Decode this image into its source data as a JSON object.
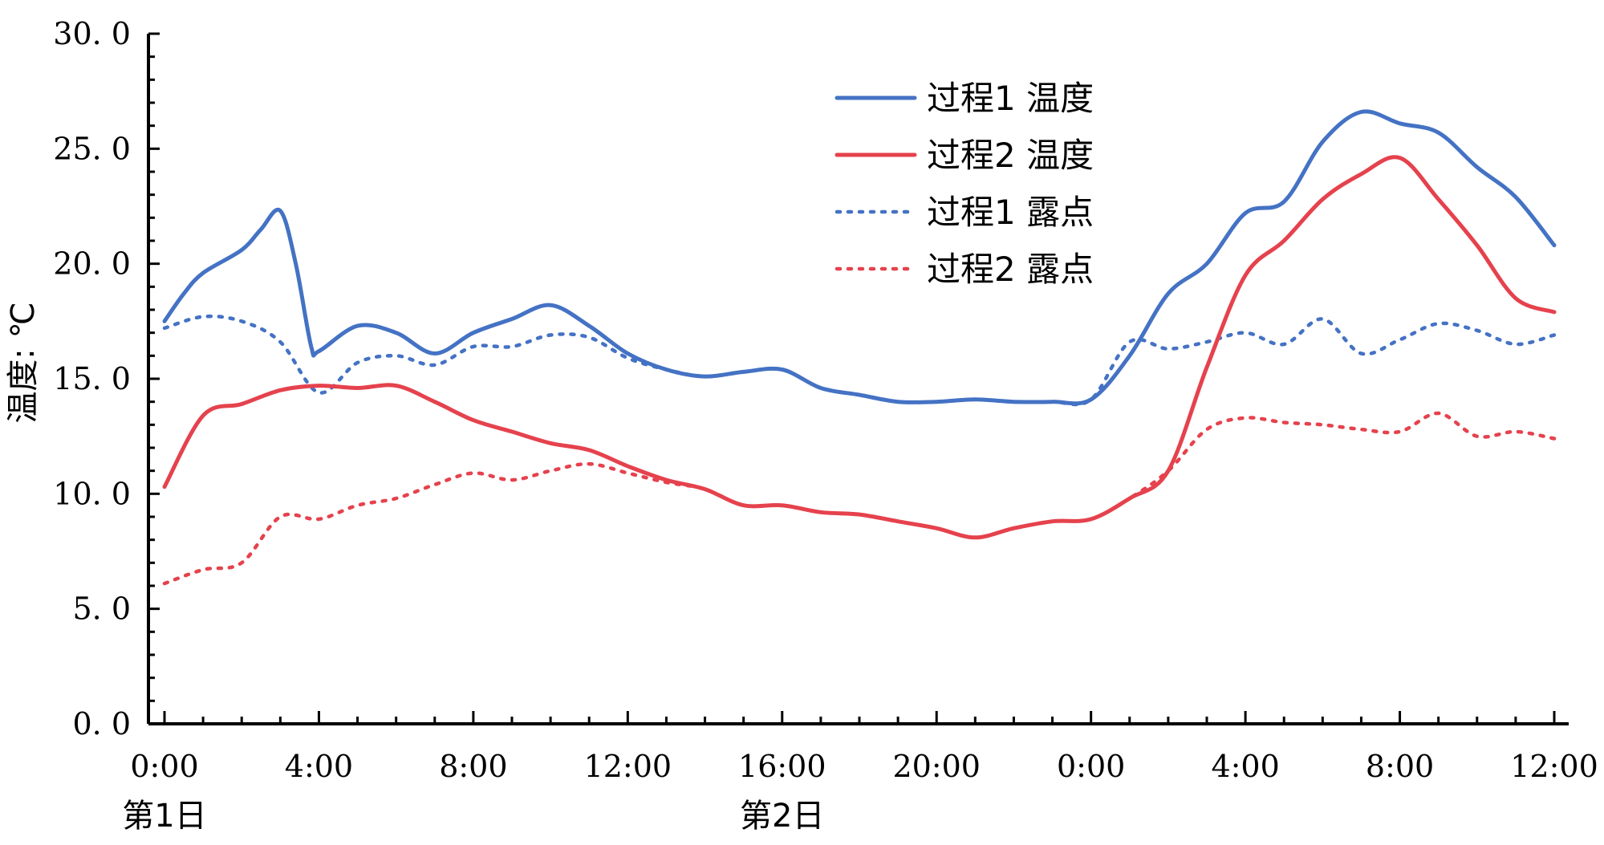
{
  "chart_data": {
    "type": "line",
    "title": "",
    "ylabel": "温度: ℃",
    "xlabel": "",
    "ylim": [
      0,
      30
    ],
    "xlim": [
      0,
      36
    ],
    "y_ticks": [
      "0. 0",
      "5. 0",
      "10. 0",
      "15. 0",
      "20. 0",
      "25. 0",
      "30. 0"
    ],
    "x_ticks": [
      {
        "x": 0,
        "label": "0:00"
      },
      {
        "x": 4,
        "label": "4:00"
      },
      {
        "x": 8,
        "label": "8:00"
      },
      {
        "x": 12,
        "label": "12:00"
      },
      {
        "x": 16,
        "label": "16:00"
      },
      {
        "x": 20,
        "label": "20:00"
      },
      {
        "x": 24,
        "label": "0:00"
      },
      {
        "x": 28,
        "label": "4:00"
      },
      {
        "x": 32,
        "label": "8:00"
      },
      {
        "x": 36,
        "label": "12:00"
      }
    ],
    "day_labels": [
      {
        "x": 0,
        "label": "第1日"
      },
      {
        "x": 16,
        "label": "第2日"
      }
    ],
    "legend_position": "top-center",
    "grid": false,
    "series": [
      {
        "name": "过程1 温度",
        "color": "#4472c4",
        "style": "solid",
        "points": [
          [
            0,
            17.5
          ],
          [
            0.5,
            18.7
          ],
          [
            1,
            19.6
          ],
          [
            2,
            20.6
          ],
          [
            2.5,
            21.5
          ],
          [
            3,
            22.3
          ],
          [
            3.4,
            20.0
          ],
          [
            3.8,
            16.4
          ],
          [
            4,
            16.2
          ],
          [
            5,
            17.3
          ],
          [
            6,
            17.0
          ],
          [
            7,
            16.1
          ],
          [
            8,
            17.0
          ],
          [
            9,
            17.6
          ],
          [
            10,
            18.2
          ],
          [
            11,
            17.3
          ],
          [
            12,
            16.1
          ],
          [
            13,
            15.4
          ],
          [
            14,
            15.1
          ],
          [
            15,
            15.3
          ],
          [
            16,
            15.4
          ],
          [
            17,
            14.6
          ],
          [
            18,
            14.3
          ],
          [
            19,
            14.0
          ],
          [
            20,
            14.0
          ],
          [
            21,
            14.1
          ],
          [
            22,
            14.0
          ],
          [
            23,
            14.0
          ],
          [
            24,
            14.1
          ],
          [
            25,
            16.0
          ],
          [
            26,
            18.7
          ],
          [
            27,
            20.0
          ],
          [
            28,
            22.2
          ],
          [
            29,
            22.7
          ],
          [
            30,
            25.3
          ],
          [
            31,
            26.6
          ],
          [
            32,
            26.1
          ],
          [
            33,
            25.7
          ],
          [
            34,
            24.2
          ],
          [
            35,
            22.9
          ],
          [
            36,
            20.8
          ]
        ]
      },
      {
        "name": "过程2 温度",
        "color": "#e5424d",
        "style": "solid",
        "points": [
          [
            0,
            10.3
          ],
          [
            1,
            13.4
          ],
          [
            2,
            13.9
          ],
          [
            3,
            14.5
          ],
          [
            4,
            14.7
          ],
          [
            5,
            14.6
          ],
          [
            6,
            14.7
          ],
          [
            7,
            14.0
          ],
          [
            8,
            13.2
          ],
          [
            9,
            12.7
          ],
          [
            10,
            12.2
          ],
          [
            11,
            11.9
          ],
          [
            12,
            11.2
          ],
          [
            13,
            10.6
          ],
          [
            14,
            10.2
          ],
          [
            15,
            9.5
          ],
          [
            16,
            9.5
          ],
          [
            17,
            9.2
          ],
          [
            18,
            9.1
          ],
          [
            19,
            8.8
          ],
          [
            20,
            8.5
          ],
          [
            21,
            8.1
          ],
          [
            22,
            8.5
          ],
          [
            23,
            8.8
          ],
          [
            24,
            8.9
          ],
          [
            25,
            9.8
          ],
          [
            26,
            11.0
          ],
          [
            27,
            15.5
          ],
          [
            28,
            19.5
          ],
          [
            29,
            21.0
          ],
          [
            30,
            22.8
          ],
          [
            31,
            23.9
          ],
          [
            32,
            24.6
          ],
          [
            33,
            22.8
          ],
          [
            34,
            20.8
          ],
          [
            35,
            18.5
          ],
          [
            36,
            17.9
          ]
        ]
      },
      {
        "name": "过程1 露点",
        "color": "#4472c4",
        "style": "dotted",
        "points": [
          [
            0,
            17.2
          ],
          [
            1,
            17.7
          ],
          [
            2,
            17.5
          ],
          [
            3,
            16.6
          ],
          [
            4,
            14.4
          ],
          [
            5,
            15.7
          ],
          [
            6,
            16.0
          ],
          [
            7,
            15.6
          ],
          [
            8,
            16.4
          ],
          [
            9,
            16.4
          ],
          [
            10,
            16.9
          ],
          [
            11,
            16.8
          ],
          [
            12,
            15.9
          ],
          [
            13,
            15.4
          ],
          [
            14,
            15.1
          ],
          [
            15,
            15.3
          ],
          [
            16,
            15.4
          ],
          [
            17,
            14.6
          ],
          [
            18,
            14.3
          ],
          [
            19,
            14.0
          ],
          [
            20,
            14.0
          ],
          [
            21,
            14.1
          ],
          [
            22,
            14.0
          ],
          [
            23,
            14.0
          ],
          [
            24,
            14.1
          ],
          [
            25,
            16.6
          ],
          [
            26,
            16.3
          ],
          [
            27,
            16.6
          ],
          [
            28,
            17.0
          ],
          [
            29,
            16.5
          ],
          [
            30,
            17.6
          ],
          [
            31,
            16.1
          ],
          [
            32,
            16.7
          ],
          [
            33,
            17.4
          ],
          [
            34,
            17.1
          ],
          [
            35,
            16.5
          ],
          [
            36,
            16.9
          ]
        ]
      },
      {
        "name": "过程2 露点",
        "color": "#e5424d",
        "style": "dotted",
        "points": [
          [
            0,
            6.1
          ],
          [
            1,
            6.7
          ],
          [
            2,
            7.0
          ],
          [
            3,
            9.0
          ],
          [
            4,
            8.9
          ],
          [
            5,
            9.5
          ],
          [
            6,
            9.8
          ],
          [
            7,
            10.4
          ],
          [
            8,
            10.9
          ],
          [
            9,
            10.6
          ],
          [
            10,
            11.0
          ],
          [
            11,
            11.3
          ],
          [
            12,
            10.9
          ],
          [
            13,
            10.5
          ],
          [
            14,
            10.2
          ],
          [
            15,
            9.5
          ],
          [
            16,
            9.5
          ],
          [
            17,
            9.2
          ],
          [
            18,
            9.1
          ],
          [
            19,
            8.8
          ],
          [
            20,
            8.5
          ],
          [
            21,
            8.1
          ],
          [
            22,
            8.5
          ],
          [
            23,
            8.8
          ],
          [
            24,
            8.9
          ],
          [
            25,
            9.8
          ],
          [
            26,
            11.0
          ],
          [
            27,
            12.8
          ],
          [
            28,
            13.3
          ],
          [
            29,
            13.1
          ],
          [
            30,
            13.0
          ],
          [
            31,
            12.8
          ],
          [
            32,
            12.7
          ],
          [
            33,
            13.5
          ],
          [
            34,
            12.5
          ],
          [
            35,
            12.7
          ],
          [
            36,
            12.4
          ]
        ]
      }
    ]
  }
}
